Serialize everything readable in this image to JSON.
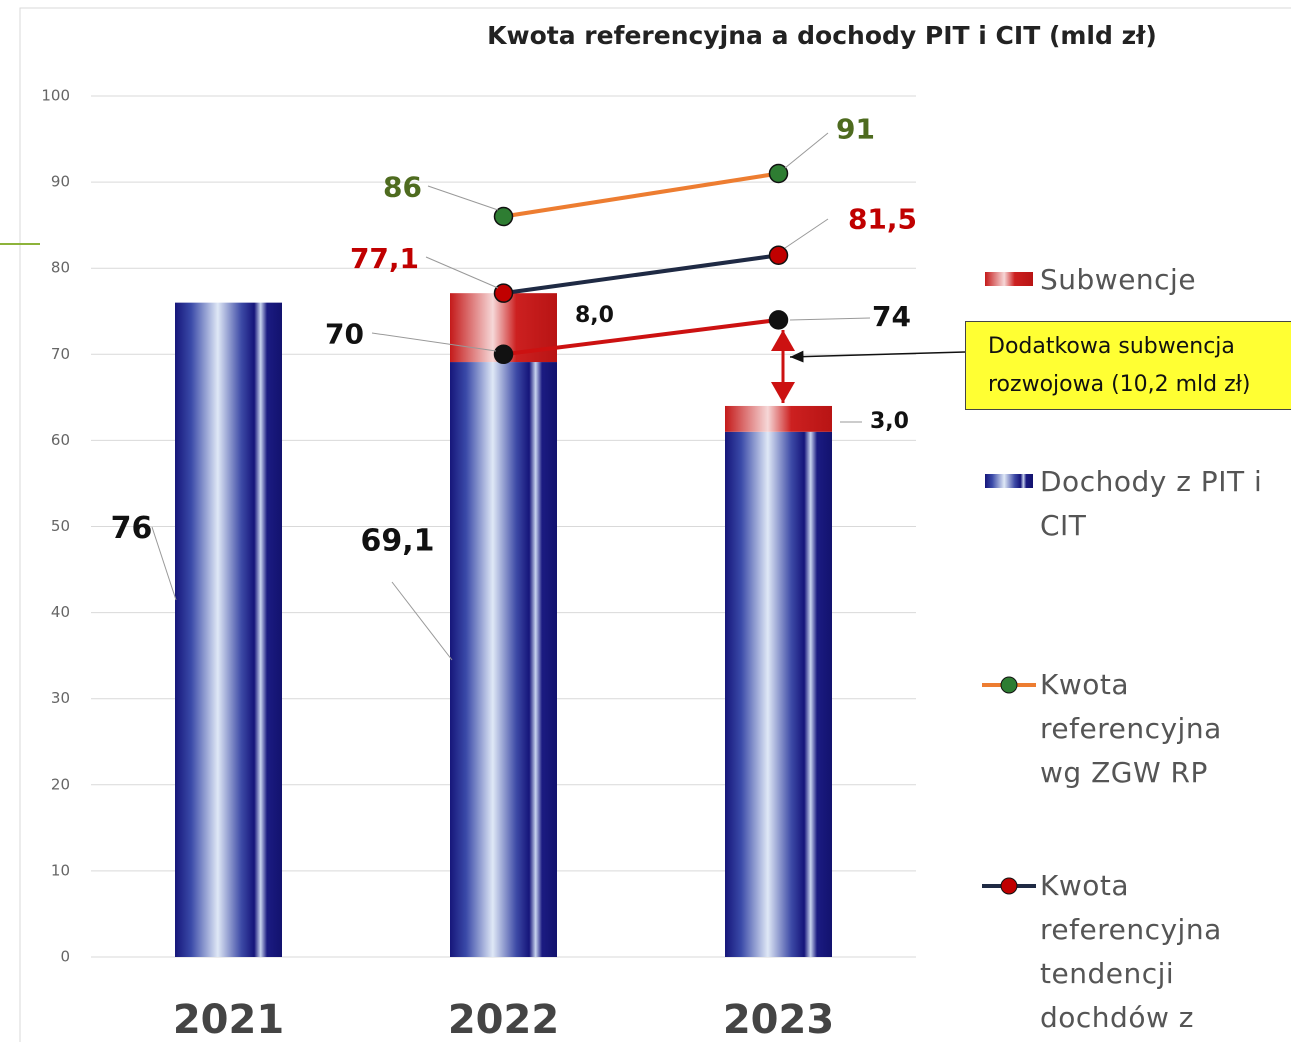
{
  "chart_data": {
    "type": "bar",
    "title": "Kwota referencyjna a dochody PIT i CIT (mld zł)",
    "categories": [
      "2021",
      "2022",
      "2023"
    ],
    "series": [
      {
        "name": "Dochody z PIT i CIT",
        "type": "bar",
        "color": "#1c1c8a",
        "values": [
          76,
          69.1,
          61
        ],
        "value_labels": [
          "76",
          "69,1",
          null
        ]
      },
      {
        "name": "Subwencje",
        "type": "bar",
        "color": "#cc1a1a",
        "values": [
          null,
          8.0,
          3.0
        ],
        "value_labels": [
          null,
          "8,0",
          "3,0"
        ]
      },
      {
        "name": "Kwota referencyjna wg ZGW RP",
        "type": "line",
        "color": "#ed7d31",
        "marker_color": "#2e7d32",
        "label_color": "#4e6b1f",
        "values": [
          null,
          86,
          91
        ]
      },
      {
        "name": "Kwota referencyjna tendencji dochdów z",
        "type": "line",
        "color": "#1f2a44",
        "marker_color": "#c00000",
        "label_color": "#c00000",
        "values": [
          null,
          77.1,
          81.5
        ],
        "value_labels": [
          null,
          "77,1",
          "81,5"
        ]
      },
      {
        "type": "line",
        "color": "#cc1111",
        "marker_color": "#111111",
        "label_color": "#111111",
        "values": [
          null,
          70,
          74
        ]
      }
    ],
    "annotation": [
      "Dodatkowa subwencja",
      "rozwojowa (10,2 mld zł)"
    ],
    "ylim": [
      0,
      100
    ],
    "yticks": [
      0,
      10,
      20,
      30,
      40,
      50,
      60,
      70,
      80,
      90,
      100
    ],
    "grid": true
  }
}
